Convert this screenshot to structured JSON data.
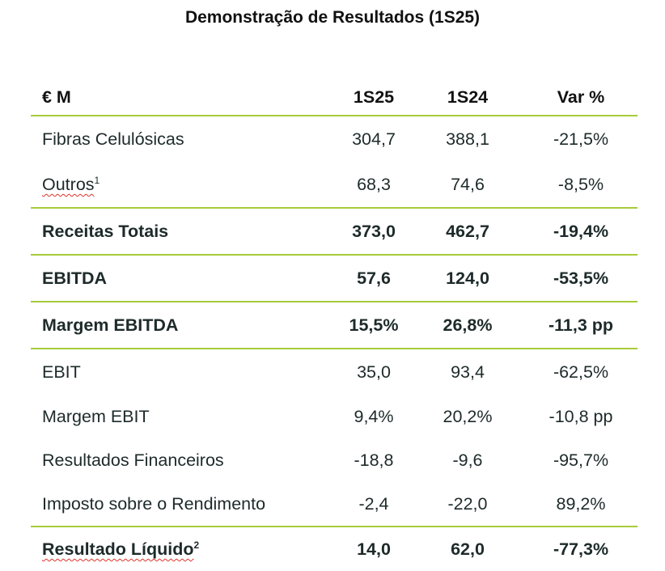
{
  "title": "Demonstração de Resultados (1S25)",
  "header": {
    "label": "€ M",
    "col1": "1S25",
    "col2": "1S24",
    "col3": "Var %"
  },
  "rows": [
    {
      "label": "Fibras Celulósicas",
      "sup": "",
      "v1": "304,7",
      "v2": "388,1",
      "v3": "-21,5%",
      "bold": false
    },
    {
      "label": "Outros",
      "sup": "1",
      "v1": "68,3",
      "v2": "74,6",
      "v3": "-8,5%",
      "bold": false
    },
    {
      "label": "Receitas Totais",
      "sup": "",
      "v1": "373,0",
      "v2": "462,7",
      "v3": "-19,4%",
      "bold": true
    },
    {
      "label": "EBITDA",
      "sup": "",
      "v1": "57,6",
      "v2": "124,0",
      "v3": "-53,5%",
      "bold": true
    },
    {
      "label": "Margem EBITDA",
      "sup": "",
      "v1": "15,5%",
      "v2": "26,8%",
      "v3": "-11,3 pp",
      "bold": true
    },
    {
      "label": "EBIT",
      "sup": "",
      "v1": "35,0",
      "v2": "93,4",
      "v3": "-62,5%",
      "bold": false
    },
    {
      "label": "Margem EBIT",
      "sup": "",
      "v1": "9,4%",
      "v2": "20,2%",
      "v3": "-10,8 pp",
      "bold": false
    },
    {
      "label": "Resultados Financeiros",
      "sup": "",
      "v1": "-18,8",
      "v2": "-9,6",
      "v3": "-95,7%",
      "bold": false
    },
    {
      "label": "Imposto sobre o Rendimento",
      "sup": "",
      "v1": "-2,4",
      "v2": "-22,0",
      "v3": "89,2%",
      "bold": false
    },
    {
      "label": "Resultado Líquido",
      "sup": "2",
      "v1": "14,0",
      "v2": "62,0",
      "v3": "-77,3%",
      "bold": true
    }
  ],
  "colors": {
    "rule": "#a7cb3a",
    "text": "#1e2a2a",
    "spellcheck": "#e0332b"
  }
}
